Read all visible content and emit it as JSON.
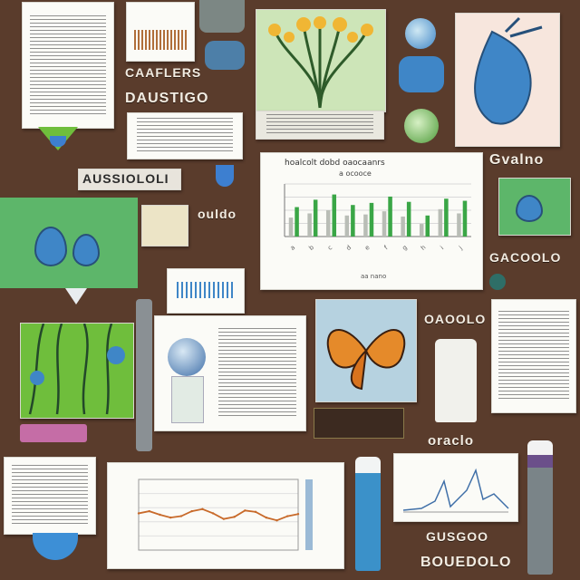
{
  "labels": {
    "left_1": "CAAFLERS",
    "left_2": "DAUSTIGO",
    "left_banner": "AUSSIOLOLI",
    "left_mid": "ouldo",
    "right_top": "Gvalno",
    "right_mid": "GACOOLO",
    "center_right": "OAOOLO",
    "bottom_center": "oraclo",
    "bottom_right_1": "GUSGOO",
    "bottom_right_2": "BOUEDOLO"
  },
  "chart_main": {
    "title": "hoalcolt dobd oaocaanrs",
    "subtitle": "a ocooce",
    "axis_caption": "aa nano"
  },
  "chart_data": [
    {
      "type": "bar",
      "categories": [
        "a",
        "b",
        "c",
        "d",
        "e",
        "f",
        "g",
        "h",
        "i",
        "j"
      ],
      "series": [
        {
          "values": [
            28,
            35,
            40,
            30,
            32,
            38,
            33,
            20,
            36,
            34
          ]
        },
        {
          "values": [
            18,
            22,
            25,
            20,
            21,
            24,
            19,
            12,
            26,
            22
          ]
        }
      ],
      "ylim": [
        0,
        50
      ],
      "grid": true
    },
    {
      "type": "line",
      "x": [
        1,
        2,
        3,
        4,
        5,
        6,
        7,
        8,
        9,
        10,
        11,
        12,
        13,
        14,
        15,
        16
      ],
      "values": [
        52,
        55,
        50,
        46,
        48,
        55,
        58,
        52,
        44,
        47,
        56,
        54,
        46,
        42,
        48,
        51
      ],
      "ylim": [
        0,
        100
      ],
      "grid": true
    }
  ],
  "colors": {
    "background": "#5a3c2c",
    "bar_green": "#3aa646",
    "bar_grey": "#b9bdb6",
    "line_orange": "#c86a2a",
    "accent_blue": "#3f86c7",
    "accent_green": "#4e9b3a"
  }
}
